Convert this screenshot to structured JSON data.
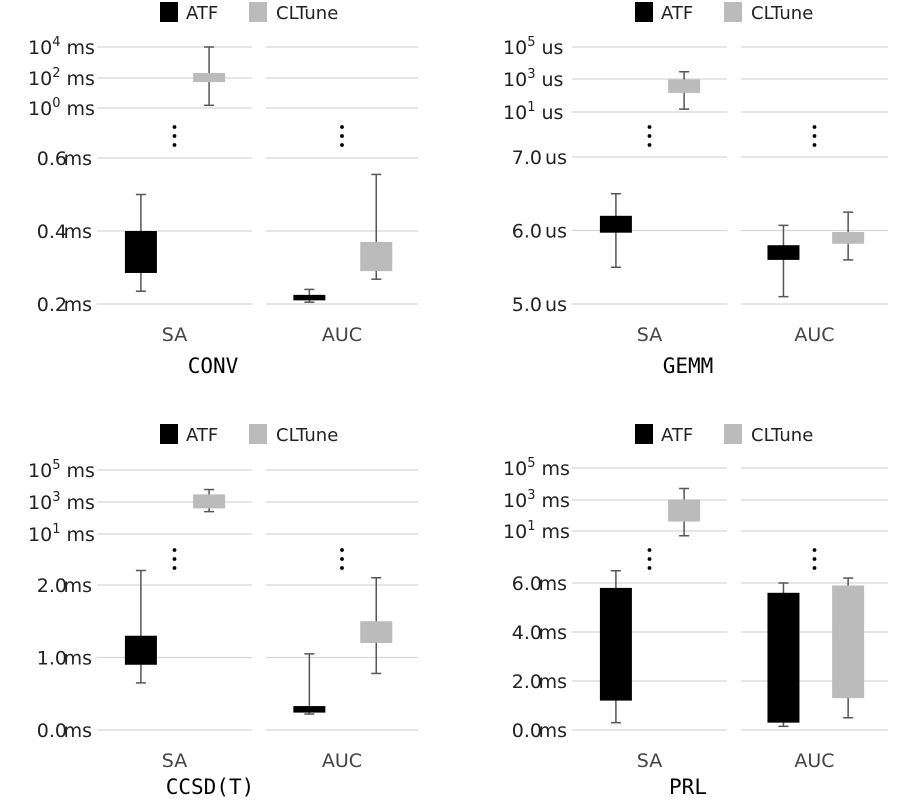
{
  "chart_data": [
    {
      "type": "box",
      "title": "CONV",
      "categories": [
        "SA",
        "AUC"
      ],
      "legend": [
        "ATF",
        "CLTune"
      ],
      "legend_placement": "top",
      "colors": {
        "ATF": "#000000",
        "CLTune": "#bbbbbb"
      },
      "lower_axis": {
        "unit": "ms",
        "range": [
          0.2,
          0.6
        ],
        "ticks": [
          "0.2 ms",
          "0.4 ms",
          "0.6 ms"
        ]
      },
      "upper_axis": {
        "scale": "log",
        "ticks": [
          "10^0 ms",
          "10^2 ms",
          "10^4 ms"
        ],
        "tick_labels": [
          {
            "base": "10",
            "exp": "0",
            "unit": " ms"
          },
          {
            "base": "10",
            "exp": "2",
            "unit": " ms"
          },
          {
            "base": "10",
            "exp": "4",
            "unit": " ms"
          }
        ]
      },
      "grid": true,
      "boxes": [
        {
          "category": "SA",
          "series": "ATF",
          "axis": "lower",
          "whisker_low": 0.235,
          "q1": 0.285,
          "q3": 0.4,
          "whisker_high": 0.5
        },
        {
          "category": "SA",
          "series": "CLTune",
          "axis": "upper",
          "whisker_low": 1.5,
          "q1": 50,
          "q3": 200,
          "whisker_high": 10000
        },
        {
          "category": "AUC",
          "series": "ATF",
          "axis": "lower",
          "whisker_low": 0.205,
          "q1": 0.21,
          "q3": 0.225,
          "whisker_high": 0.24
        },
        {
          "category": "AUC",
          "series": "CLTune",
          "axis": "lower",
          "whisker_low": 0.268,
          "q1": 0.29,
          "q3": 0.37,
          "whisker_high": 0.555
        }
      ]
    },
    {
      "type": "box",
      "title": "GEMM",
      "categories": [
        "SA",
        "AUC"
      ],
      "legend": [
        "ATF",
        "CLTune"
      ],
      "legend_placement": "top",
      "colors": {
        "ATF": "#000000",
        "CLTune": "#bbbbbb"
      },
      "lower_axis": {
        "unit": "us",
        "range": [
          5.0,
          7.0
        ],
        "ticks": [
          "5.0 us",
          "6.0 us",
          "7.0 us"
        ]
      },
      "upper_axis": {
        "scale": "log",
        "ticks": [
          "10^1 us",
          "10^3 us",
          "10^5 us"
        ],
        "tick_labels": [
          {
            "base": "10",
            "exp": "1",
            "unit": " us"
          },
          {
            "base": "10",
            "exp": "3",
            "unit": " us"
          },
          {
            "base": "10",
            "exp": "5",
            "unit": " us"
          }
        ]
      },
      "grid": true,
      "boxes": [
        {
          "category": "SA",
          "series": "ATF",
          "axis": "lower",
          "whisker_low": 5.5,
          "q1": 5.97,
          "q3": 6.2,
          "whisker_high": 6.5
        },
        {
          "category": "SA",
          "series": "CLTune",
          "axis": "upper",
          "whisker_low": 15,
          "q1": 150,
          "q3": 1000,
          "whisker_high": 3000
        },
        {
          "category": "AUC",
          "series": "ATF",
          "axis": "lower",
          "whisker_low": 5.1,
          "q1": 5.6,
          "q3": 5.8,
          "whisker_high": 6.07
        },
        {
          "category": "AUC",
          "series": "CLTune",
          "axis": "lower",
          "whisker_low": 5.6,
          "q1": 5.82,
          "q3": 5.98,
          "whisker_high": 6.25
        }
      ]
    },
    {
      "type": "box",
      "title": "CCSD(T)",
      "categories": [
        "SA",
        "AUC"
      ],
      "legend": [
        "ATF",
        "CLTune"
      ],
      "legend_placement": "top",
      "colors": {
        "ATF": "#000000",
        "CLTune": "#bbbbbb"
      },
      "lower_axis": {
        "unit": "ms",
        "range": [
          0.0,
          2.0
        ],
        "ticks": [
          "0.0 ms",
          "1.0 ms",
          "2.0 ms"
        ]
      },
      "upper_axis": {
        "scale": "log",
        "ticks": [
          "10^1 ms",
          "10^3 ms",
          "10^5 ms"
        ],
        "tick_labels": [
          {
            "base": "10",
            "exp": "1",
            "unit": " ms"
          },
          {
            "base": "10",
            "exp": "3",
            "unit": " ms"
          },
          {
            "base": "10",
            "exp": "5",
            "unit": " ms"
          }
        ]
      },
      "grid": true,
      "boxes": [
        {
          "category": "SA",
          "series": "ATF",
          "axis": "lower",
          "whisker_low": 0.65,
          "q1": 0.9,
          "q3": 1.3,
          "whisker_high": 2.2
        },
        {
          "category": "SA",
          "series": "CLTune",
          "axis": "upper",
          "whisker_low": 250,
          "q1": 400,
          "q3": 3000,
          "whisker_high": 6000
        },
        {
          "category": "AUC",
          "series": "ATF",
          "axis": "lower",
          "whisker_low": 0.22,
          "q1": 0.24,
          "q3": 0.33,
          "whisker_high": 1.05
        },
        {
          "category": "AUC",
          "series": "CLTune",
          "axis": "lower",
          "whisker_low": 0.78,
          "q1": 1.2,
          "q3": 1.5,
          "whisker_high": 2.1
        }
      ]
    },
    {
      "type": "box",
      "title": "PRL",
      "categories": [
        "SA",
        "AUC"
      ],
      "legend": [
        "ATF",
        "CLTune"
      ],
      "legend_placement": "top",
      "colors": {
        "ATF": "#000000",
        "CLTune": "#bbbbbb"
      },
      "lower_axis": {
        "unit": "ms",
        "range": [
          0.0,
          6.0
        ],
        "ticks": [
          "0.0 ms",
          "2.0 ms",
          "4.0 ms",
          "6.0 ms"
        ]
      },
      "upper_axis": {
        "scale": "log",
        "ticks": [
          "10^1 ms",
          "10^3 ms",
          "10^5 ms"
        ],
        "tick_labels": [
          {
            "base": "10",
            "exp": "1",
            "unit": " ms"
          },
          {
            "base": "10",
            "exp": "3",
            "unit": " ms"
          },
          {
            "base": "10",
            "exp": "5",
            "unit": " ms"
          }
        ]
      },
      "grid": true,
      "boxes": [
        {
          "category": "SA",
          "series": "ATF",
          "axis": "lower",
          "whisker_low": 0.3,
          "q1": 1.2,
          "q3": 5.8,
          "whisker_high": 6.5
        },
        {
          "category": "SA",
          "series": "CLTune",
          "axis": "upper",
          "whisker_low": 5,
          "q1": 40,
          "q3": 1000,
          "whisker_high": 5000
        },
        {
          "category": "AUC",
          "series": "ATF",
          "axis": "lower",
          "whisker_low": 0.15,
          "q1": 0.3,
          "q3": 5.6,
          "whisker_high": 6.0
        },
        {
          "category": "AUC",
          "series": "CLTune",
          "axis": "lower",
          "whisker_low": 0.5,
          "q1": 1.3,
          "q3": 5.9,
          "whisker_high": 6.2
        }
      ]
    }
  ]
}
